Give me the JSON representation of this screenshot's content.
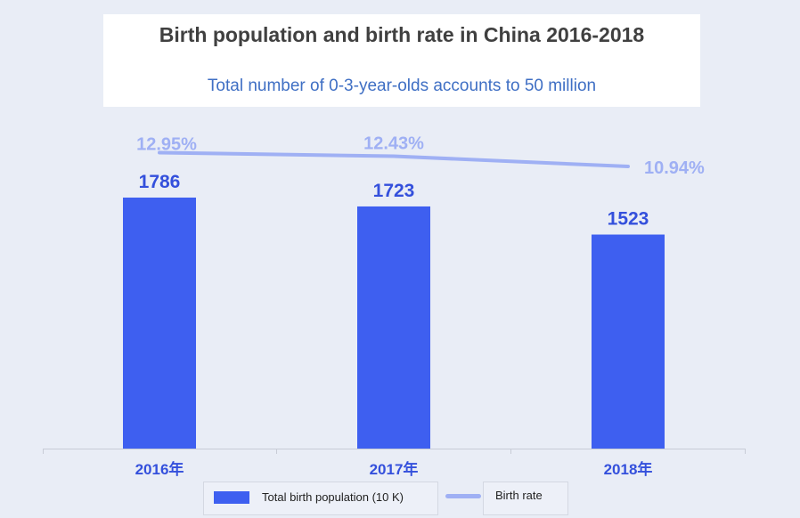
{
  "title": "Birth population and birth rate in China 2016-2018",
  "subtitle": "Total number of 0-3-year-olds accounts to 50 million",
  "colors": {
    "bar": "#3e5ff0",
    "line": "#9fb0f4",
    "bar_label": "#3450dc",
    "axis_label": "#3450dc",
    "line_label": "#9fb0f4"
  },
  "chart_data": {
    "type": "bar",
    "categories": [
      "2016年",
      "2017年",
      "2018年"
    ],
    "series": [
      {
        "name": "Total birth population (10 K)",
        "type": "bar",
        "values": [
          1786,
          1723,
          1523
        ],
        "labels": [
          "1786",
          "1723",
          "1523"
        ]
      },
      {
        "name": "Birth rate",
        "type": "line",
        "values": [
          12.95,
          12.43,
          10.94
        ],
        "labels": [
          "12.95%",
          "12.43%",
          "10.94%"
        ]
      }
    ],
    "legend_position": "bottom",
    "grid": false
  }
}
